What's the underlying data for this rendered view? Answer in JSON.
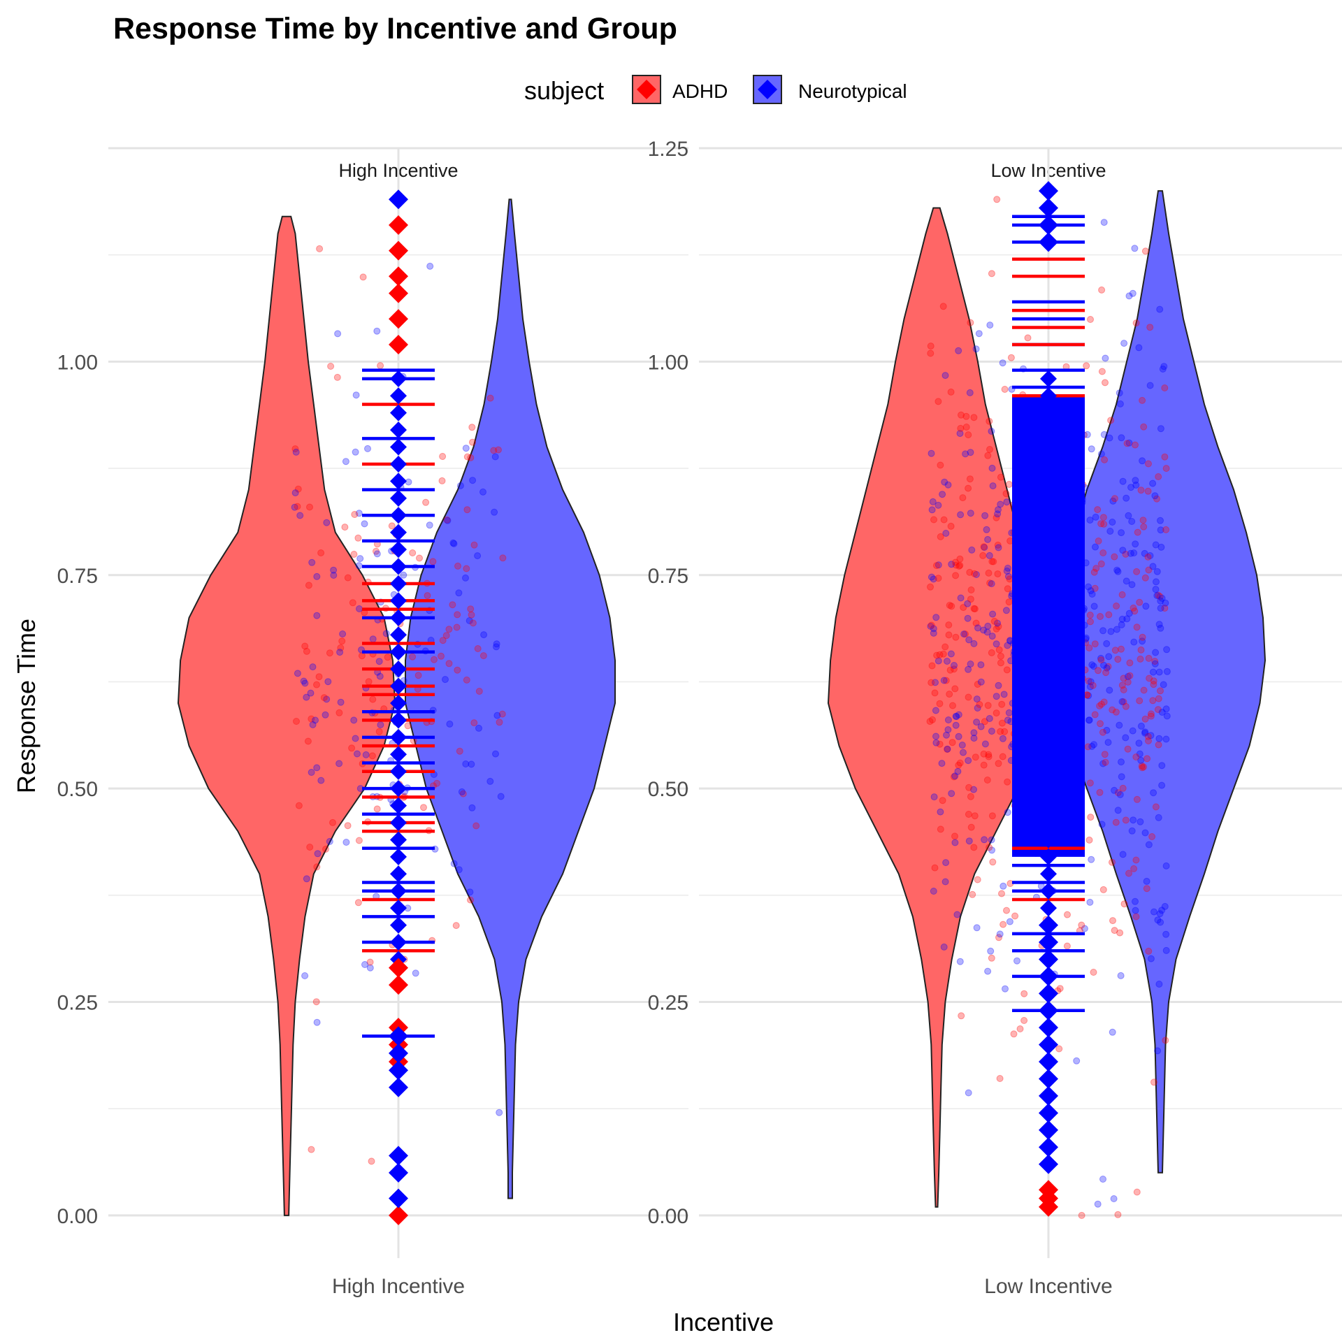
{
  "chart_data": {
    "type": "violin",
    "title": "Response Time by Incentive and Group",
    "xlabel": "Incentive",
    "ylabel": "Response Time",
    "legend": {
      "title": "subject",
      "position": "top",
      "entries": [
        {
          "name": "ADHD",
          "color": "#FF0000"
        },
        {
          "name": "Neurotypical",
          "color": "#0000FF"
        }
      ]
    },
    "grid": true,
    "y_ticks": [
      "0.00",
      "0.25",
      "0.50",
      "0.75",
      "1.00",
      "1.25"
    ],
    "panels": [
      {
        "strip": "High Incentive",
        "x_tick": "High Incentive",
        "ylim": [
          -0.05,
          1.25
        ],
        "show_y_tick_top": false,
        "n_points": 260,
        "violins": [
          {
            "group": "ADHD",
            "side": "left",
            "min": 0.0,
            "max": 1.17,
            "density": [
              [
                0.0,
                0.02
              ],
              [
                0.05,
                0.03
              ],
              [
                0.1,
                0.04
              ],
              [
                0.2,
                0.06
              ],
              [
                0.25,
                0.08
              ],
              [
                0.3,
                0.12
              ],
              [
                0.35,
                0.17
              ],
              [
                0.4,
                0.25
              ],
              [
                0.45,
                0.45
              ],
              [
                0.5,
                0.72
              ],
              [
                0.55,
                0.9
              ],
              [
                0.6,
                1.0
              ],
              [
                0.65,
                0.98
              ],
              [
                0.7,
                0.9
              ],
              [
                0.75,
                0.7
              ],
              [
                0.8,
                0.45
              ],
              [
                0.85,
                0.35
              ],
              [
                0.9,
                0.3
              ],
              [
                0.95,
                0.25
              ],
              [
                1.0,
                0.2
              ],
              [
                1.05,
                0.16
              ],
              [
                1.1,
                0.12
              ],
              [
                1.15,
                0.08
              ],
              [
                1.17,
                0.04
              ]
            ]
          },
          {
            "group": "Neurotypical",
            "side": "right",
            "min": 0.02,
            "max": 1.19,
            "density": [
              [
                0.02,
                0.02
              ],
              [
                0.05,
                0.02
              ],
              [
                0.1,
                0.03
              ],
              [
                0.2,
                0.05
              ],
              [
                0.25,
                0.08
              ],
              [
                0.3,
                0.15
              ],
              [
                0.35,
                0.3
              ],
              [
                0.4,
                0.5
              ],
              [
                0.45,
                0.65
              ],
              [
                0.5,
                0.8
              ],
              [
                0.55,
                0.9
              ],
              [
                0.6,
                1.0
              ],
              [
                0.65,
                1.0
              ],
              [
                0.7,
                0.95
              ],
              [
                0.75,
                0.85
              ],
              [
                0.8,
                0.7
              ],
              [
                0.85,
                0.5
              ],
              [
                0.9,
                0.35
              ],
              [
                0.95,
                0.25
              ],
              [
                1.0,
                0.18
              ],
              [
                1.05,
                0.12
              ],
              [
                1.1,
                0.08
              ],
              [
                1.15,
                0.04
              ],
              [
                1.19,
                0.01
              ]
            ]
          }
        ],
        "mean_lines": [
          {
            "group": "Neurotypical",
            "values": [
              0.21,
              0.32,
              0.35,
              0.38,
              0.39,
              0.43,
              0.47,
              0.5,
              0.53,
              0.56,
              0.59,
              0.66,
              0.7,
              0.76,
              0.79,
              0.82,
              0.85,
              0.91,
              0.98,
              0.99
            ]
          },
          {
            "group": "ADHD",
            "values": [
              0.31,
              0.37,
              0.45,
              0.46,
              0.49,
              0.52,
              0.55,
              0.58,
              0.61,
              0.62,
              0.64,
              0.67,
              0.71,
              0.72,
              0.74,
              0.88,
              0.95
            ]
          }
        ],
        "diamonds": [
          {
            "group": "ADHD",
            "values": [
              0.0,
              0.18,
              0.2,
              0.22,
              0.27,
              0.29,
              1.02,
              1.05,
              1.08,
              1.1,
              1.13,
              1.16
            ]
          },
          {
            "group": "Neurotypical",
            "values": [
              0.02,
              0.05,
              0.07,
              0.15,
              0.17,
              0.19,
              0.21,
              1.19
            ]
          }
        ]
      },
      {
        "strip": "Low Incentive",
        "x_tick": "Low Incentive",
        "ylim": [
          -0.05,
          1.25
        ],
        "show_y_tick_top": true,
        "n_points": 800,
        "violins": [
          {
            "group": "ADHD",
            "side": "left",
            "min": 0.01,
            "max": 1.18,
            "density": [
              [
                0.01,
                0.01
              ],
              [
                0.05,
                0.02
              ],
              [
                0.1,
                0.03
              ],
              [
                0.15,
                0.04
              ],
              [
                0.2,
                0.05
              ],
              [
                0.25,
                0.08
              ],
              [
                0.3,
                0.14
              ],
              [
                0.35,
                0.22
              ],
              [
                0.4,
                0.35
              ],
              [
                0.45,
                0.55
              ],
              [
                0.5,
                0.75
              ],
              [
                0.55,
                0.9
              ],
              [
                0.6,
                1.0
              ],
              [
                0.65,
                0.98
              ],
              [
                0.7,
                0.93
              ],
              [
                0.75,
                0.85
              ],
              [
                0.8,
                0.75
              ],
              [
                0.85,
                0.65
              ],
              [
                0.9,
                0.55
              ],
              [
                0.95,
                0.45
              ],
              [
                1.0,
                0.38
              ],
              [
                1.05,
                0.3
              ],
              [
                1.1,
                0.2
              ],
              [
                1.15,
                0.1
              ],
              [
                1.18,
                0.03
              ]
            ]
          },
          {
            "group": "Neurotypical",
            "side": "right",
            "min": 0.05,
            "max": 1.2,
            "density": [
              [
                0.05,
                0.02
              ],
              [
                0.1,
                0.03
              ],
              [
                0.2,
                0.05
              ],
              [
                0.25,
                0.08
              ],
              [
                0.3,
                0.15
              ],
              [
                0.35,
                0.28
              ],
              [
                0.4,
                0.42
              ],
              [
                0.45,
                0.55
              ],
              [
                0.5,
                0.7
              ],
              [
                0.55,
                0.85
              ],
              [
                0.6,
                0.95
              ],
              [
                0.65,
                1.0
              ],
              [
                0.7,
                0.98
              ],
              [
                0.75,
                0.92
              ],
              [
                0.8,
                0.82
              ],
              [
                0.85,
                0.7
              ],
              [
                0.9,
                0.55
              ],
              [
                0.95,
                0.42
              ],
              [
                1.0,
                0.32
              ],
              [
                1.05,
                0.22
              ],
              [
                1.1,
                0.15
              ],
              [
                1.15,
                0.08
              ],
              [
                1.2,
                0.02
              ]
            ]
          }
        ],
        "mean_lines": [
          {
            "group": "Neurotypical",
            "values": [
              0.24,
              0.28,
              0.31,
              0.33,
              0.38,
              0.39,
              0.41,
              0.45,
              0.5,
              0.55,
              0.6,
              0.65,
              0.7,
              0.75,
              0.8,
              0.85,
              0.9,
              0.95,
              0.97,
              0.99,
              1.02,
              1.05,
              1.07,
              1.1,
              1.14,
              1.16,
              1.17
            ]
          },
          {
            "group": "ADHD",
            "values": [
              0.37,
              0.43,
              0.96,
              1.02,
              1.04,
              1.06,
              1.1,
              1.12
            ]
          }
        ],
        "diamonds": [
          {
            "group": "ADHD",
            "values": [
              0.01,
              0.02,
              0.03
            ]
          },
          {
            "group": "Neurotypical",
            "values": [
              0.06,
              0.08,
              0.1,
              0.12,
              0.14,
              0.16,
              0.18,
              0.2,
              0.22,
              0.24,
              0.26,
              0.28,
              0.3,
              0.32,
              0.34,
              1.14,
              1.16,
              1.18,
              1.2
            ]
          }
        ],
        "dense_band": {
          "group": "Neurotypical",
          "range": [
            0.42,
            0.96
          ]
        }
      }
    ]
  }
}
